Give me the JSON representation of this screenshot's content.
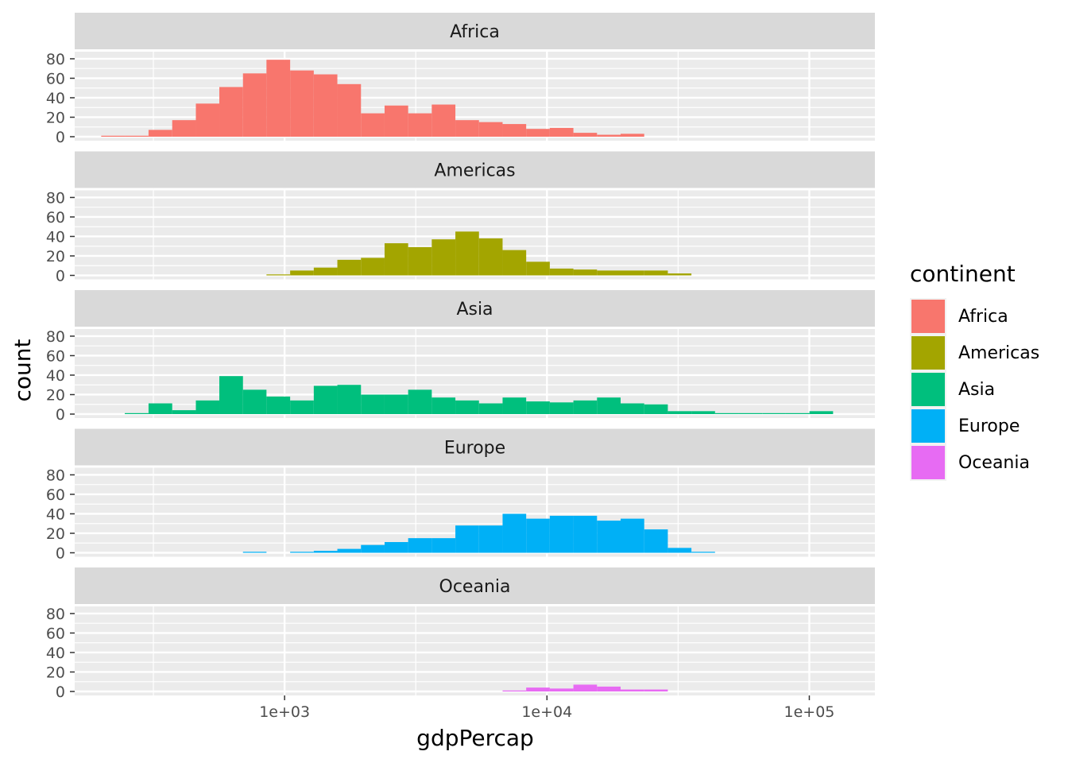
{
  "chart_data": {
    "type": "bar",
    "subtype": "faceted histogram",
    "xlabel": "gdpPercap",
    "ylabel": "count",
    "x_scale": "log10",
    "x_ticks": [
      1000,
      10000,
      100000
    ],
    "x_tick_labels": [
      "1e+03",
      "1e+04",
      "1e+05"
    ],
    "y_ticks": [
      0,
      20,
      40,
      60,
      80
    ],
    "y_tick_labels": [
      "0",
      "20",
      "40",
      "60",
      "80"
    ],
    "ylim": [
      0,
      80
    ],
    "bin_edges": [
      200,
      246,
      303,
      373,
      459,
      564,
      694,
      853,
      1050,
      1292,
      1589,
      1955,
      2405,
      2958,
      3639,
      4477,
      5507,
      6775,
      8334,
      10253,
      12613,
      15517,
      19089,
      23483,
      28888,
      35538,
      43719,
      53784,
      66164,
      81395,
      100132,
      123182
    ],
    "legend": {
      "title": "continent",
      "position": "right"
    },
    "grid": true,
    "series": [
      {
        "name": "Africa",
        "color": "#F8766D",
        "values": [
          1,
          1,
          7,
          17,
          34,
          51,
          65,
          79,
          68,
          64,
          54,
          24,
          32,
          24,
          33,
          17,
          15,
          13,
          8,
          9,
          4,
          2,
          3,
          0,
          0,
          0,
          0,
          0,
          0,
          0,
          0
        ]
      },
      {
        "name": "Americas",
        "color": "#A3A500",
        "values": [
          0,
          0,
          0,
          0,
          0,
          0,
          0,
          1,
          5,
          8,
          16,
          18,
          33,
          29,
          37,
          45,
          38,
          26,
          14,
          7,
          6,
          5,
          5,
          5,
          2,
          0,
          0,
          0,
          0,
          0,
          0
        ]
      },
      {
        "name": "Asia",
        "color": "#00BF7D",
        "values": [
          0,
          1,
          11,
          4,
          14,
          39,
          25,
          18,
          14,
          29,
          30,
          20,
          20,
          25,
          17,
          14,
          11,
          17,
          13,
          12,
          14,
          17,
          11,
          10,
          3,
          3,
          1,
          1,
          1,
          1,
          3
        ]
      },
      {
        "name": "Europe",
        "color": "#00B0F6",
        "values": [
          0,
          0,
          0,
          0,
          0,
          0,
          1,
          0,
          1,
          2,
          4,
          8,
          11,
          15,
          15,
          28,
          28,
          40,
          35,
          38,
          38,
          33,
          35,
          24,
          5,
          1,
          0,
          0,
          0,
          0,
          0
        ]
      },
      {
        "name": "Oceania",
        "color": "#E76BF3",
        "values": [
          0,
          0,
          0,
          0,
          0,
          0,
          0,
          0,
          0,
          0,
          0,
          0,
          0,
          0,
          0,
          0,
          0,
          1,
          4,
          3,
          7,
          5,
          2,
          2,
          0,
          0,
          0,
          0,
          0,
          0,
          0
        ]
      }
    ]
  }
}
